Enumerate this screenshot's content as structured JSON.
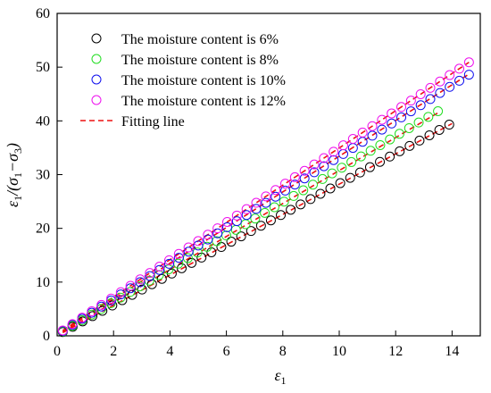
{
  "chart_data": {
    "type": "scatter",
    "title": "",
    "xlabel": "ε1",
    "ylabel": "ε1/(σ1−σ3)",
    "xlim": [
      0,
      15
    ],
    "ylim": [
      0,
      60
    ],
    "xticks": [
      0,
      2,
      4,
      6,
      8,
      10,
      12,
      14
    ],
    "yticks": [
      0,
      10,
      20,
      30,
      40,
      50,
      60
    ],
    "grid": false,
    "legend_position": "top-left",
    "series": [
      {
        "name": "The moisture content is 6%",
        "color": "#000000",
        "marker": "open-circle",
        "x_range": [
          0.2,
          13.9
        ],
        "y_range": [
          0.7,
          39.3
        ],
        "points": 40
      },
      {
        "name": "The moisture content is 8%",
        "color": "#22dd22",
        "marker": "open-circle",
        "x_range": [
          0.2,
          13.5
        ],
        "y_range": [
          0.8,
          41.8
        ],
        "points": 40
      },
      {
        "name": "The moisture content is 10%",
        "color": "#1010ee",
        "marker": "open-circle",
        "x_range": [
          0.2,
          14.6
        ],
        "y_range": [
          0.9,
          48.6
        ],
        "points": 43
      },
      {
        "name": "The moisture content is 12%",
        "color": "#ee10ee",
        "marker": "open-circle",
        "x_range": [
          0.2,
          14.6
        ],
        "y_range": [
          1.0,
          50.9
        ],
        "points": 43
      }
    ],
    "fitting_lines": [
      {
        "name": "Fitting line",
        "color": "#ee1111",
        "style": "dashed",
        "x": [
          0.2,
          14.0
        ],
        "y": [
          0.6,
          39.5
        ]
      },
      {
        "x": [
          0.2,
          13.5
        ],
        "y": [
          0.7,
          41.5
        ]
      },
      {
        "x": [
          0.2,
          14.6
        ],
        "y": [
          0.9,
          48.7
        ]
      },
      {
        "x": [
          0.2,
          14.6
        ],
        "y": [
          1.0,
          50.9
        ]
      }
    ]
  }
}
